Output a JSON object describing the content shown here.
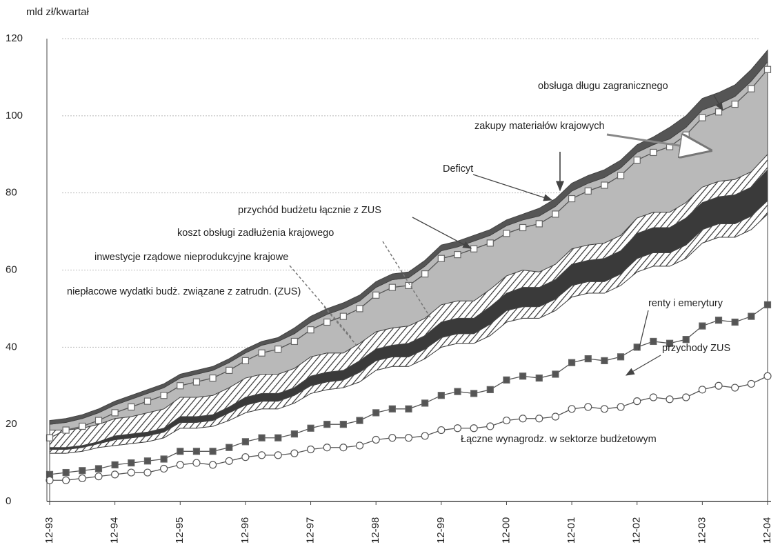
{
  "chart_data": {
    "type": "area",
    "y_label": "mld zł/kwartał",
    "categories": [
      "12-93",
      null,
      null,
      null,
      "12-94",
      null,
      null,
      null,
      "12-95",
      null,
      null,
      null,
      "12-96",
      null,
      null,
      null,
      "12-97",
      null,
      null,
      null,
      "12-98",
      null,
      null,
      null,
      "12-99",
      null,
      null,
      null,
      "12-00",
      null,
      null,
      null,
      "12-01",
      null,
      null,
      null,
      "12-02",
      null,
      null,
      null,
      "12-03",
      null,
      null,
      null,
      "12-04"
    ],
    "ylim": [
      0,
      120
    ],
    "yticks": [
      0,
      20,
      40,
      60,
      80,
      100,
      120
    ],
    "grid": true,
    "annotations": [
      "Deficyt"
    ],
    "series": [
      {
        "name": "Łączne wynagrodz. w sektorze budżetowym",
        "color": "#ffffff",
        "hatch": false,
        "values": [
          12.5,
          12.5,
          13,
          14,
          14.5,
          15,
          15.5,
          16.5,
          19,
          19,
          19.5,
          21,
          23,
          24,
          24,
          25.5,
          28,
          29,
          29.5,
          31,
          34,
          35,
          35,
          37,
          40,
          41,
          41,
          43,
          46.5,
          47.5,
          47.5,
          49.5,
          53,
          54,
          54,
          56,
          59.5,
          61,
          61,
          63,
          67,
          68.5,
          68.5,
          70.5,
          74.5
        ]
      },
      {
        "name": "niepłacowe wydatki budż. związane z zatrudn. (ZUS)",
        "color": "#ffffff",
        "hatch": true,
        "values": [
          1,
          1,
          1,
          1,
          1.5,
          1.5,
          1.5,
          1.5,
          1.5,
          1.5,
          1.5,
          2,
          2,
          2,
          2,
          2,
          2,
          2,
          2,
          2.5,
          2.5,
          2.5,
          2.5,
          2.5,
          2.5,
          2.5,
          2.5,
          3,
          3,
          3,
          3,
          3,
          3,
          3,
          3,
          3,
          3.5,
          3.5,
          3.5,
          3.5,
          3.5,
          3.5,
          3.5,
          3.5,
          3.5
        ]
      },
      {
        "name": "inwestycje rządowe nieprodukcyjne krajowe",
        "color": "#3a3a3a",
        "hatch": false,
        "values": [
          0.5,
          0.5,
          0.5,
          0.5,
          1,
          1,
          1,
          1,
          1.5,
          1.5,
          1.5,
          1.5,
          2,
          2,
          2,
          2,
          2.5,
          2.5,
          2.5,
          3,
          3,
          3,
          3.5,
          3.5,
          4,
          4,
          4,
          4.5,
          4.5,
          5,
          5,
          5,
          5.5,
          5.5,
          6,
          6,
          6.5,
          6.5,
          6.5,
          7,
          7,
          7,
          7.5,
          7.5,
          8
        ]
      },
      {
        "name": "koszt obsługi zadłużenia krajowego",
        "color": "#ffffff",
        "hatch": true,
        "values": [
          4.5,
          4.5,
          4.5,
          4.5,
          4.5,
          4.5,
          5,
          5,
          5,
          5,
          5,
          5,
          5,
          5,
          5,
          5,
          5,
          5,
          4.5,
          4.5,
          4.5,
          4.5,
          4.5,
          4.5,
          4.5,
          4.5,
          4.5,
          4.5,
          4.5,
          4.5,
          4,
          4,
          4,
          4,
          4,
          4,
          4,
          4,
          4,
          4,
          4,
          4,
          4,
          4,
          4
        ]
      },
      {
        "name": "zakupy materiałów krajowych",
        "color": "#b9b9b9",
        "hatch": false,
        "values": [
          1.5,
          2,
          2.5,
          3,
          3.5,
          4.5,
          5,
          5.5,
          5,
          6,
          6.5,
          6.5,
          6.5,
          7.5,
          8.5,
          9,
          9,
          10,
          11.5,
          11,
          11.5,
          12.5,
          12.5,
          13.5,
          14,
          14,
          15.5,
          14,
          13,
          13,
          14.5,
          15,
          15,
          16,
          17,
          17.5,
          17,
          17.5,
          19,
          19.5,
          20,
          20,
          21.5,
          23.5,
          24
        ]
      },
      {
        "name": "obsługa długu zagranicznego",
        "color": "#555555",
        "hatch": false,
        "values": [
          1,
          1,
          1,
          1,
          1,
          1,
          1,
          1,
          1,
          1,
          1,
          1,
          1,
          1,
          1,
          1.5,
          1.5,
          1.5,
          1.5,
          1.5,
          1.5,
          1.5,
          1.5,
          1.5,
          1.5,
          1.5,
          1.5,
          1.5,
          1.5,
          1.5,
          2,
          2,
          2,
          2,
          2,
          2,
          2,
          2,
          3,
          3,
          3,
          3,
          3,
          3,
          3
        ]
      },
      {
        "name": "przychód budżetu łącznie z ZUS",
        "type": "line",
        "marker": "square",
        "color": "#ffffff",
        "values": [
          16.5,
          18.5,
          19.5,
          21,
          23,
          24.5,
          26,
          27.5,
          30,
          31,
          32,
          34,
          36.5,
          38.5,
          39.5,
          41.5,
          44.5,
          46.5,
          48,
          50,
          53.5,
          55.5,
          56,
          59,
          63,
          64,
          65.5,
          67,
          69.5,
          71,
          72,
          74.5,
          78.5,
          80.5,
          82,
          84.5,
          88.5,
          90.5,
          92,
          95,
          99.5,
          101,
          103,
          107,
          112
        ]
      },
      {
        "name": "renty i emerytury",
        "type": "line",
        "marker": "square",
        "color": "#555555",
        "values": [
          7,
          7.5,
          8,
          8.5,
          9.5,
          10,
          10.5,
          11,
          13,
          13,
          13,
          14,
          15.5,
          16.5,
          16.5,
          17.5,
          19,
          20,
          20,
          21,
          23,
          24,
          24,
          25.5,
          27.5,
          28.5,
          28,
          29,
          31.5,
          32.5,
          32,
          33,
          36,
          37,
          36.5,
          37.5,
          40,
          41.5,
          41,
          42,
          45.5,
          47,
          46.5,
          48,
          51
        ]
      },
      {
        "name": "przychody ZUS",
        "type": "line",
        "marker": "circle",
        "color": "#ffffff",
        "values": [
          5.5,
          5.5,
          6,
          6.5,
          7,
          7.5,
          7.5,
          8.5,
          9.5,
          10,
          9.5,
          10.5,
          11.5,
          12,
          12,
          12.5,
          13.5,
          14,
          14,
          14.5,
          16,
          16.5,
          16.5,
          17,
          18.5,
          19,
          19,
          19.5,
          21,
          21.5,
          21.5,
          22,
          24,
          24.5,
          24,
          24.5,
          26,
          27,
          26.5,
          27,
          29,
          30,
          29.5,
          30.5,
          32.5
        ]
      }
    ]
  }
}
